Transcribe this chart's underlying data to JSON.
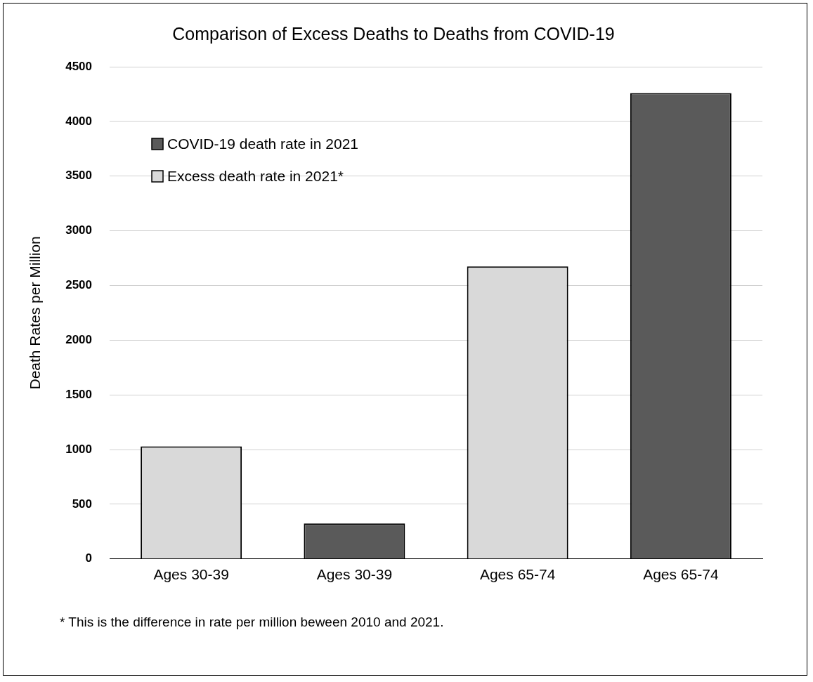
{
  "chart_data": {
    "type": "bar",
    "title": "Comparison of Excess Deaths to Deaths from COVID-19",
    "ylabel": "Death Rates per Million",
    "categories": [
      "Ages 30-39",
      "Ages 30-39",
      "Ages 65-74",
      "Ages 65-74"
    ],
    "series": [
      {
        "name": "COVID-19 death rate in 2021",
        "color": "#5a5a5a",
        "values": [
          null,
          325,
          null,
          4260
        ]
      },
      {
        "name": "Excess death rate in 2021*",
        "color": "#d9d9d9",
        "values": [
          1030,
          null,
          2675,
          null
        ]
      }
    ],
    "ylim": [
      0,
      4500
    ],
    "yticks": [
      0,
      500,
      1000,
      1500,
      2000,
      2500,
      3000,
      3500,
      4000,
      4500
    ],
    "grid": "y",
    "legend": "top left",
    "annotations": [
      "* This is the difference in rate per million beween 2010 and 2021."
    ]
  }
}
